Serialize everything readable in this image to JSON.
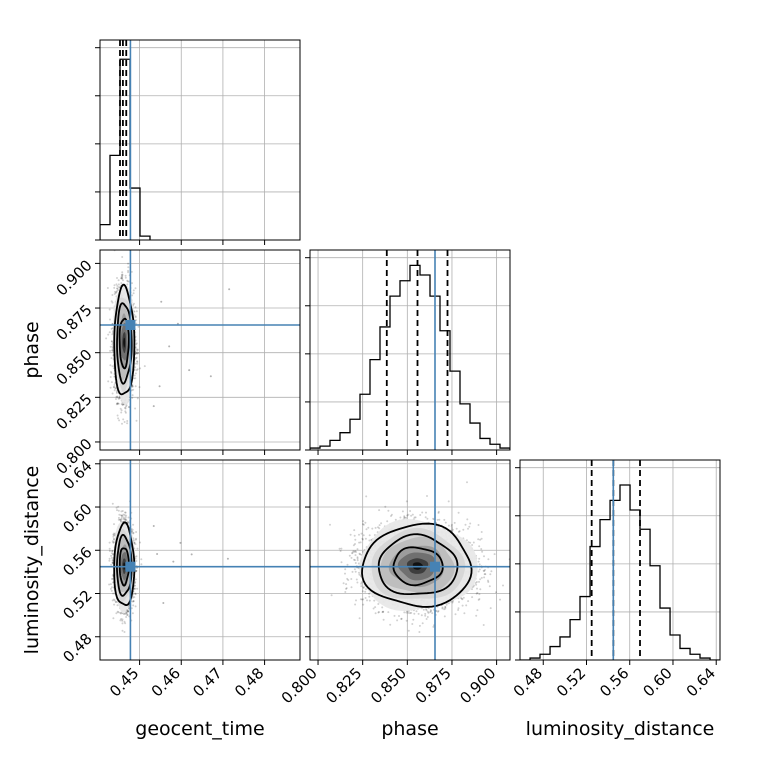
{
  "chart_data": {
    "type": "corner",
    "parameters": [
      "geocent_time",
      "phase",
      "luminosity_distance"
    ],
    "truth_color": "#4682b4",
    "grid": true,
    "xlabels": [
      "geocent_time",
      "phase",
      "luminosity_distance"
    ],
    "ylabels": [
      "",
      "phase",
      "luminosity_distance"
    ],
    "marginals": [
      {
        "param": "geocent_time",
        "xlim": [
          0.4405,
          0.4885
        ],
        "bin_edges": [
          0.4405,
          0.4429,
          0.4453,
          0.4477,
          0.4501,
          0.4525
        ],
        "counts": [
          0.08,
          0.44,
          0.94,
          0.27,
          0.02
        ],
        "ymax": 1.0,
        "quantiles": [
          0.4453,
          0.446,
          0.4468
        ],
        "truth": 0.4478
      },
      {
        "param": "phase",
        "xlim": [
          0.7955,
          0.9075
        ],
        "bin_edges": [
          0.7955,
          0.8011,
          0.8067,
          0.8123,
          0.8179,
          0.8235,
          0.8291,
          0.8347,
          0.8403,
          0.8459,
          0.8515,
          0.8571,
          0.8627,
          0.8683,
          0.8739,
          0.8795,
          0.8851,
          0.8907,
          0.8963,
          0.9019,
          0.9075
        ],
        "counts": [
          0.01,
          0.02,
          0.05,
          0.09,
          0.16,
          0.29,
          0.47,
          0.64,
          0.8,
          0.88,
          0.96,
          0.91,
          0.8,
          0.62,
          0.41,
          0.24,
          0.14,
          0.06,
          0.03,
          0.01
        ],
        "ymax": 1.0,
        "quantiles": [
          0.8385,
          0.8557,
          0.8725
        ],
        "truth": 0.8655
      },
      {
        "param": "luminosity_distance",
        "xlim": [
          0.4585,
          0.6435
        ],
        "bin_edges": [
          0.4585,
          0.4678,
          0.477,
          0.4863,
          0.4955,
          0.5048,
          0.514,
          0.5233,
          0.5325,
          0.5418,
          0.551,
          0.5603,
          0.5695,
          0.5788,
          0.588,
          0.5973,
          0.6065,
          0.6158,
          0.625,
          0.6343,
          0.6435
        ],
        "counts": [
          0.0,
          0.01,
          0.03,
          0.07,
          0.12,
          0.21,
          0.33,
          0.59,
          0.73,
          0.83,
          0.91,
          0.78,
          0.68,
          0.49,
          0.27,
          0.13,
          0.06,
          0.03,
          0.01,
          0.0
        ],
        "ymax": 1.0,
        "quantiles": [
          0.5248,
          0.5448,
          0.5695
        ],
        "truth": 0.5448
      }
    ],
    "joint": [
      {
        "x": "geocent_time",
        "y": "phase",
        "xlim": [
          0.4405,
          0.4885
        ],
        "ylim": [
          0.7955,
          0.9075
        ],
        "mean": [
          0.4463,
          0.8557
        ],
        "std": [
          0.0011,
          0.0138
        ],
        "truth": [
          0.4478,
          0.8655
        ],
        "contour_sigmas": [
          1.0,
          1.6,
          2.2
        ],
        "n_points": 2600,
        "outliers": [
          [
            0.4552,
            0.8785
          ],
          [
            0.4571,
            0.8535
          ],
          [
            0.4619,
            0.8402
          ],
          [
            0.4671,
            0.8368
          ],
          [
            0.4715,
            0.8855
          ],
          [
            0.4548,
            0.8312
          ],
          [
            0.4592,
            0.8662
          ],
          [
            0.4534,
            0.8201
          ]
        ]
      },
      {
        "x": "geocent_time",
        "y": "luminosity_distance",
        "xlim": [
          0.4405,
          0.4885
        ],
        "ylim": [
          0.4585,
          0.6435
        ],
        "mean": [
          0.4463,
          0.5455
        ],
        "std": [
          0.0011,
          0.0172
        ],
        "truth": [
          0.4478,
          0.5448
        ],
        "contour_sigmas": [
          1.0,
          1.6,
          2.2
        ],
        "n_points": 2600,
        "outliers": [
          [
            0.4542,
            0.5565
          ],
          [
            0.4581,
            0.5495
          ],
          [
            0.4625,
            0.5562
          ],
          [
            0.4712,
            0.5521
          ],
          [
            0.4557,
            0.5112
          ],
          [
            0.4598,
            0.5668
          ],
          [
            0.4534,
            0.5825
          ]
        ]
      },
      {
        "x": "phase",
        "y": "luminosity_distance",
        "xlim": [
          0.7955,
          0.9075
        ],
        "ylim": [
          0.4585,
          0.6435
        ],
        "mean": [
          0.8557,
          0.5455
        ],
        "std": [
          0.0138,
          0.0172
        ],
        "truth": [
          0.8655,
          0.5448
        ],
        "contour_sigmas": [
          1.0,
          1.6,
          2.2
        ],
        "n_points": 4200,
        "outliers": []
      }
    ],
    "ticks": {
      "geocent_time": {
        "values": [
          0.45,
          0.46,
          0.47,
          0.48
        ],
        "labels": [
          "0.45",
          "0.46",
          "0.47",
          "0.48"
        ]
      },
      "phase": {
        "values": [
          0.8,
          0.825,
          0.85,
          0.875,
          0.9
        ],
        "labels": [
          "0.800",
          "0.825",
          "0.850",
          "0.875",
          "0.900"
        ]
      },
      "luminosity_distance": {
        "values": [
          0.48,
          0.52,
          0.56,
          0.6,
          0.64
        ],
        "labels": [
          "0.48",
          "0.52",
          "0.56",
          "0.60",
          "0.64"
        ]
      }
    }
  }
}
